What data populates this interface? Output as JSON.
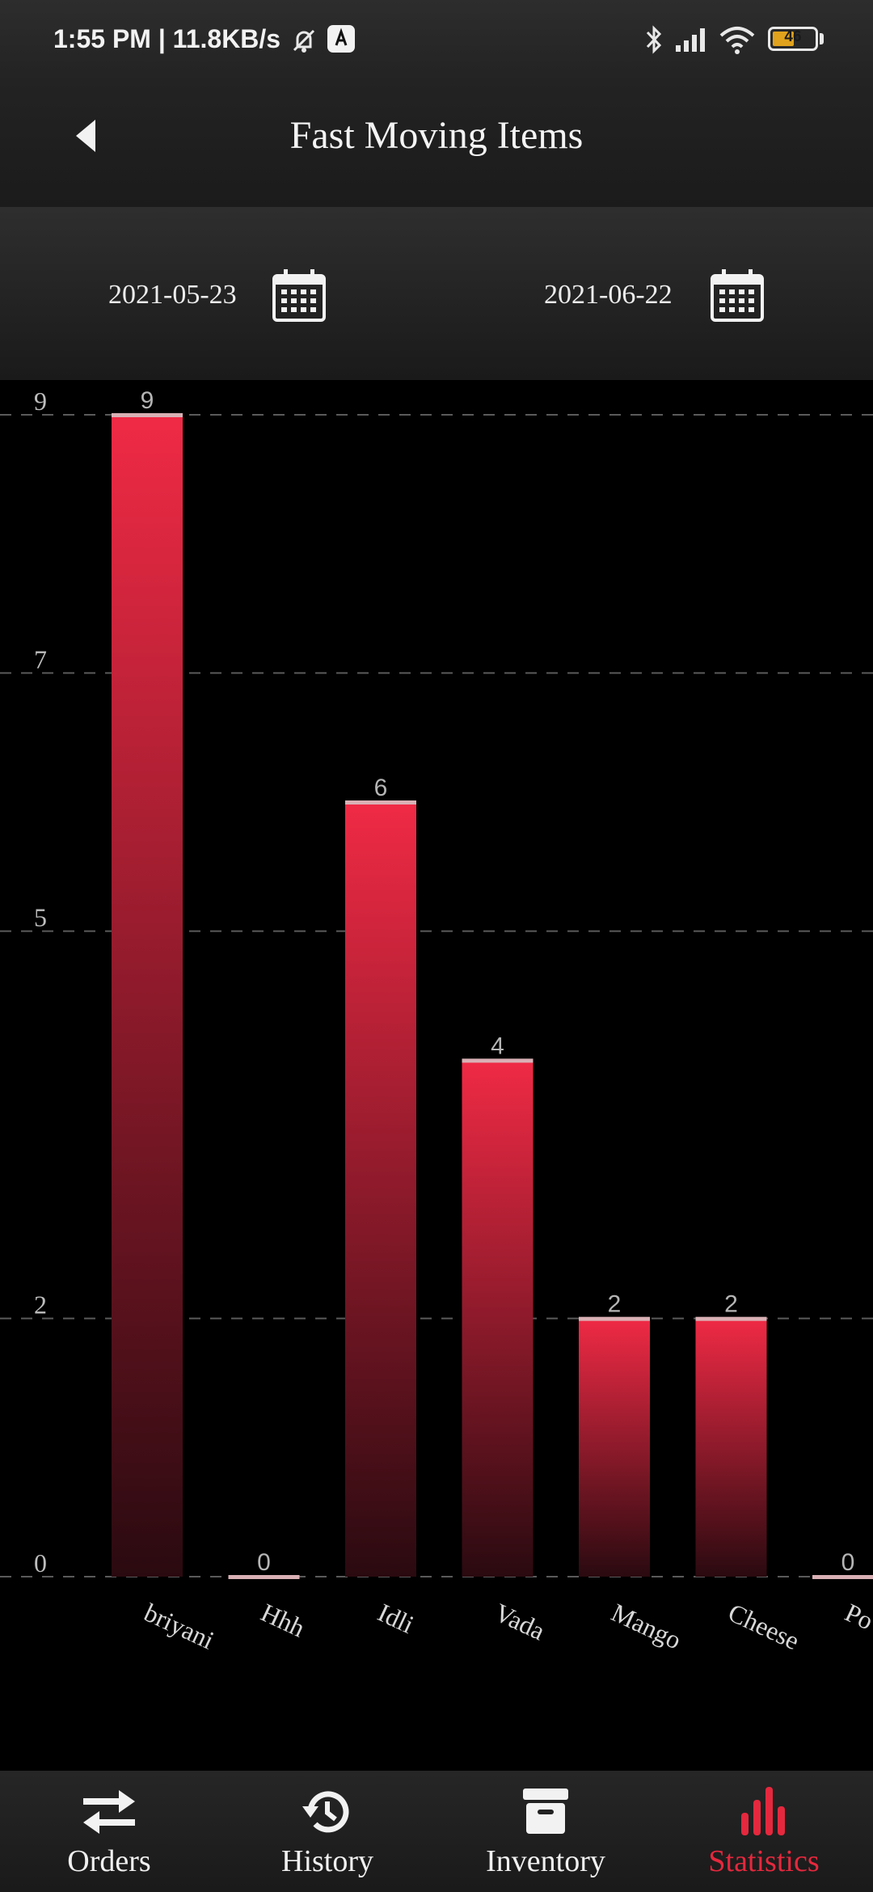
{
  "status_bar": {
    "time": "1:55 PM | 11.8KB/s",
    "battery_level": "46"
  },
  "header": {
    "title": "Fast Moving Items"
  },
  "date_range": {
    "start": "2021-05-23",
    "end": "2021-06-22"
  },
  "colors": {
    "accent": "#e5283d",
    "bar_top": "#f02a45",
    "bar_bottom": "#2a0a10"
  },
  "chart_data": {
    "type": "bar",
    "categories": [
      "briyani",
      "Hhh",
      "Idli",
      "Vada",
      "Mango",
      "Cheese",
      "Po"
    ],
    "values": [
      9,
      0,
      6,
      4,
      2,
      2,
      0
    ],
    "y_ticks": [
      "9",
      "7",
      "5",
      "2",
      "0"
    ],
    "ylim": [
      0,
      9
    ],
    "grid": "dashed horizontal",
    "data_labels": true
  },
  "nav": {
    "items": [
      {
        "label": "Orders",
        "icon": "swap-arrows-icon",
        "active": false
      },
      {
        "label": "History",
        "icon": "history-icon",
        "active": false
      },
      {
        "label": "Inventory",
        "icon": "archive-box-icon",
        "active": false
      },
      {
        "label": "Statistics",
        "icon": "bar-chart-icon",
        "active": true
      }
    ]
  }
}
